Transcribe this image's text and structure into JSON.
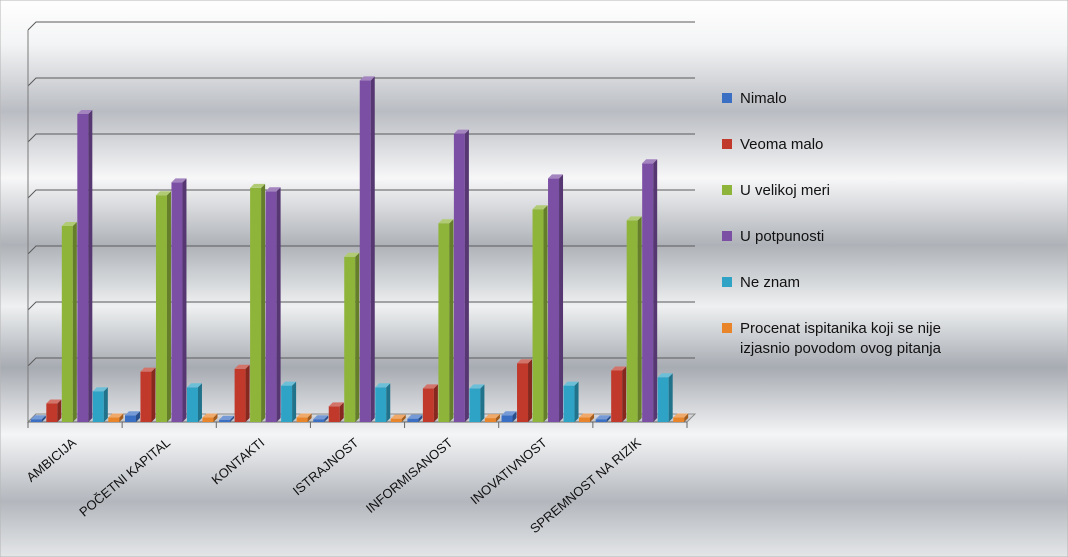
{
  "chart_data": {
    "type": "bar",
    "title": "",
    "xlabel": "",
    "ylabel": "",
    "ylim": [
      0,
      70
    ],
    "grid": true,
    "legend_position": "right",
    "categories": [
      "AMBICIJA",
      "POČETNI KAPITAL",
      "KONTAKTI",
      "ISTRAJNOST",
      "INFORMISANOST",
      "INOVATIVNOST",
      "SPREMNOST NA RIZIK"
    ],
    "series": [
      {
        "name": "Nimalo",
        "color": "#3a6fc4",
        "values": [
          0.5,
          1.2,
          0.4,
          0.5,
          0.6,
          1.2,
          0.5
        ]
      },
      {
        "name": "Veoma malo",
        "color": "#c0392b",
        "values": [
          3.3,
          9,
          9.5,
          2.8,
          6,
          10.5,
          9.2
        ]
      },
      {
        "name": "U velikoj meri",
        "color": "#8fb43a",
        "values": [
          35,
          40.5,
          41.8,
          29.5,
          35.5,
          38,
          36
        ]
      },
      {
        "name": "U potpunosti",
        "color": "#7b4fa3",
        "values": [
          55,
          42.8,
          41.2,
          61,
          51.5,
          43.5,
          46.2
        ]
      },
      {
        "name": "Ne znam",
        "color": "#2fa3c6",
        "values": [
          5.5,
          6.2,
          6.5,
          6.2,
          6,
          6.5,
          8
        ]
      },
      {
        "name": "Procenat ispitanika koji se nije izjasnio povodom ovog pitanja",
        "color": "#e8852b",
        "values": [
          0.8,
          0.8,
          0.8,
          0.6,
          0.7,
          0.8,
          0.8
        ]
      }
    ]
  }
}
